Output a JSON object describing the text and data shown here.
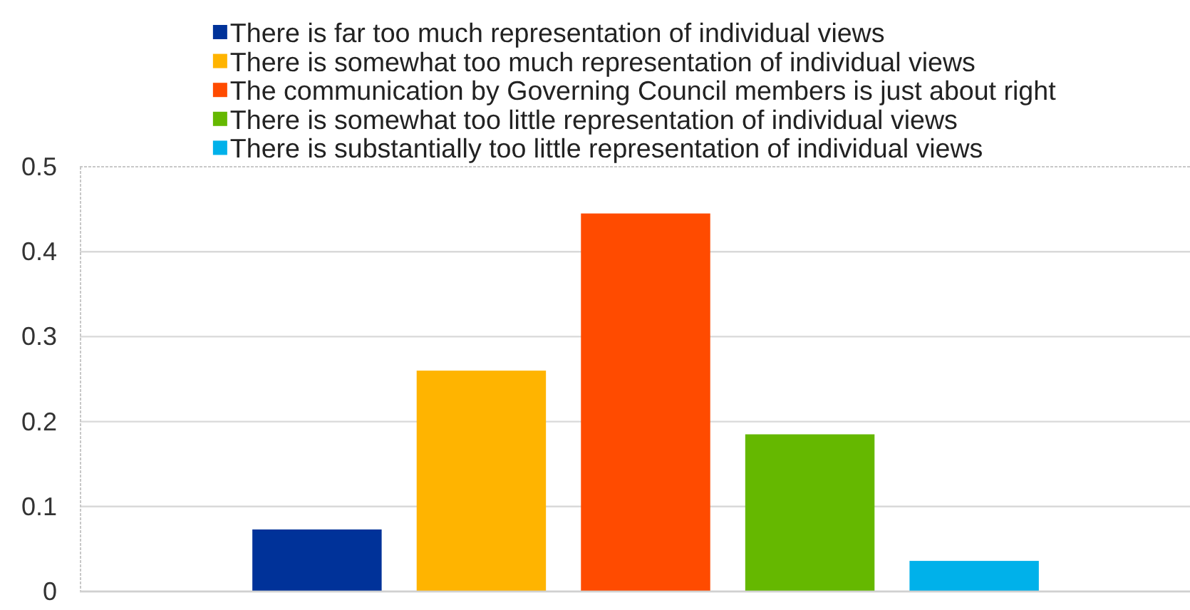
{
  "chart_data": {
    "type": "bar",
    "categories": [
      null
    ],
    "series": [
      {
        "name": "There is far too much representation of individual views",
        "color": "#003299",
        "values": [
          0.073
        ]
      },
      {
        "name": "There is somewhat too much representation of individual views",
        "color": "#ffb400",
        "values": [
          0.26
        ]
      },
      {
        "name": "The communication by Governing Council members is just about right",
        "color": "#ff4b00",
        "values": [
          0.445
        ]
      },
      {
        "name": "There is somewhat too little representation of individual views",
        "color": "#65b800",
        "values": [
          0.185
        ]
      },
      {
        "name": "There is substantially too little representation of individual views",
        "color": "#00b1ea",
        "values": [
          0.036
        ]
      }
    ],
    "ylim": [
      0,
      0.5
    ],
    "yticks": [
      0,
      0.1,
      0.2,
      0.3,
      0.4,
      0.5
    ],
    "grid": "y",
    "legend": "top"
  }
}
